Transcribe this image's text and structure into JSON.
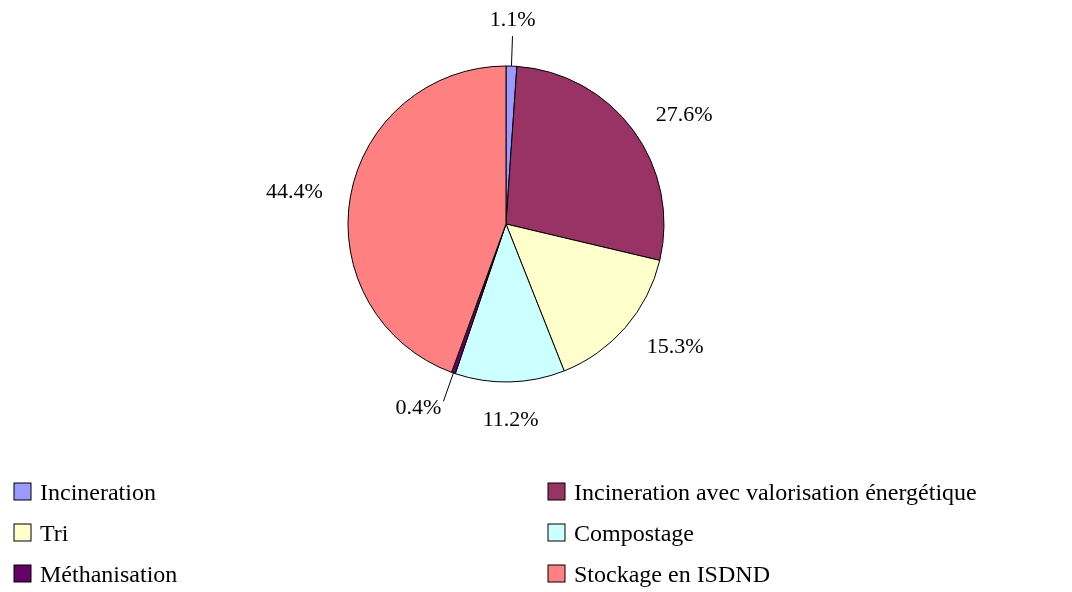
{
  "chart_data": {
    "type": "pie",
    "categories": [
      "Incineration",
      "Incineration avec valorisation énergétique",
      "Tri",
      "Compostage",
      "Méthanisation",
      "Stockage en ISDND"
    ],
    "values": [
      1.1,
      27.6,
      15.3,
      11.2,
      0.4,
      44.4
    ],
    "colors": [
      "#9999ff",
      "#993366",
      "#ffffcc",
      "#ccffff",
      "#660066",
      "#ff8080"
    ],
    "value_labels": [
      "1.1%",
      "27.6%",
      "15.3%",
      "11.2%",
      "0.4%",
      "44.4%"
    ],
    "legend": "bottom"
  }
}
